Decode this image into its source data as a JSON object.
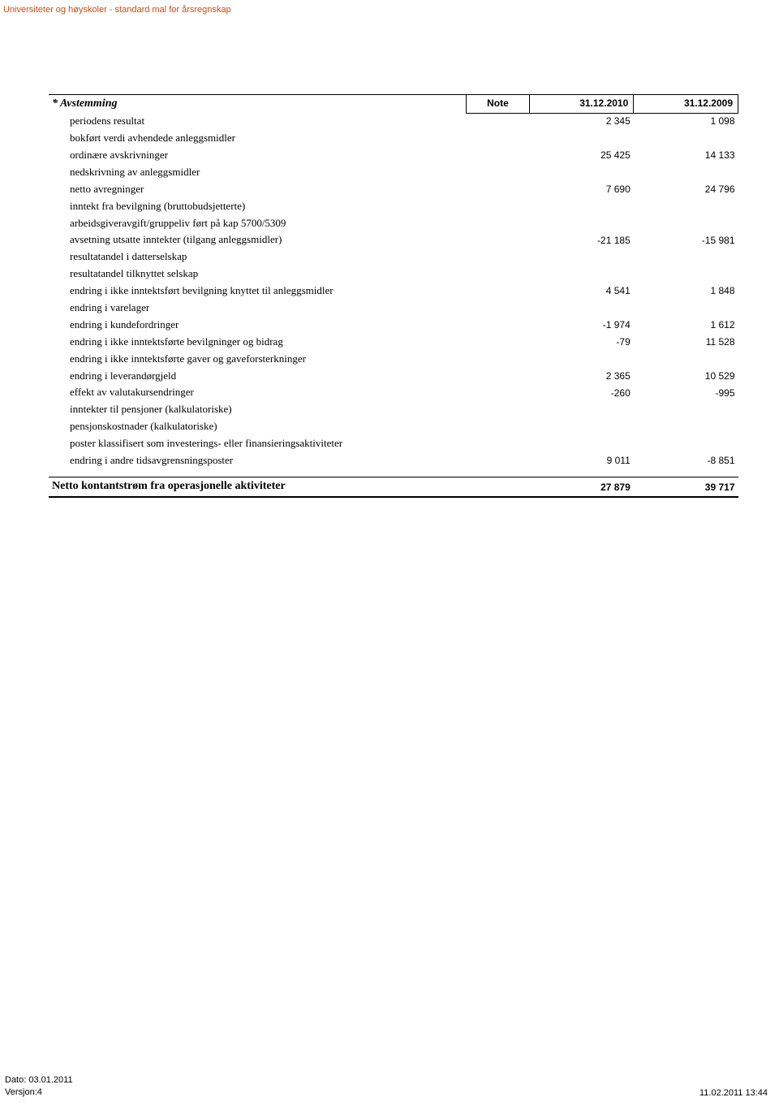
{
  "page": {
    "header": "Universiteter og høyskoler - standard mal for årsregnskap"
  },
  "table": {
    "section_title": "* Avstemming",
    "columns": {
      "note": "Note",
      "val1": "31.12.2010",
      "val2": "31.12.2009"
    },
    "rows": [
      {
        "label": "periodens resultat",
        "v1": "2 345",
        "v2": "1 098"
      },
      {
        "label": "bokført verdi avhendede anleggsmidler",
        "v1": "",
        "v2": ""
      },
      {
        "label": "ordinære avskrivninger",
        "v1": "25 425",
        "v2": "14 133"
      },
      {
        "label": "nedskrivning av anleggsmidler",
        "v1": "",
        "v2": ""
      },
      {
        "label": "netto avregninger",
        "v1": "7 690",
        "v2": "24 796"
      },
      {
        "label": "inntekt fra bevilgning (bruttobudsjetterte)",
        "v1": "",
        "v2": ""
      },
      {
        "label": "arbeidsgiveravgift/gruppeliv ført på kap 5700/5309",
        "v1": "",
        "v2": ""
      },
      {
        "label": "avsetning utsatte inntekter (tilgang anleggsmidler)",
        "v1": "-21 185",
        "v2": "-15 981"
      },
      {
        "label": "resultatandel i datterselskap",
        "v1": "",
        "v2": ""
      },
      {
        "label": "resultatandel tilknyttet selskap",
        "v1": "",
        "v2": ""
      },
      {
        "label": "endring i ikke inntektsført bevilgning knyttet til anleggsmidler",
        "v1": "4 541",
        "v2": "1 848"
      },
      {
        "label": "endring i varelager",
        "v1": "",
        "v2": ""
      },
      {
        "label": "endring i kundefordringer",
        "v1": "-1 974",
        "v2": "1 612"
      },
      {
        "label": "endring i ikke inntektsførte bevilgninger og bidrag",
        "v1": "-79",
        "v2": "11 528"
      },
      {
        "label": "endring i ikke inntektsførte gaver og gaveforsterkninger",
        "v1": "",
        "v2": ""
      },
      {
        "label": "endring i leverandørgjeld",
        "v1": "2 365",
        "v2": "10 529"
      },
      {
        "label": "effekt av valutakursendringer",
        "v1": "-260",
        "v2": "-995"
      },
      {
        "label": "inntekter til pensjoner (kalkulatoriske)",
        "v1": "",
        "v2": ""
      },
      {
        "label": "pensjonskostnader (kalkulatoriske)",
        "v1": "",
        "v2": ""
      },
      {
        "label": "poster klassifisert som investerings- eller finansieringsaktiviteter",
        "v1": "",
        "v2": ""
      },
      {
        "label": "endring i andre tidsavgrensningsposter",
        "v1": "9 011",
        "v2": "-8 851"
      }
    ],
    "total": {
      "label": "Netto kontantstrøm fra operasjonelle aktiviteter",
      "v1": "27 879",
      "v2": "39 717"
    }
  },
  "footer": {
    "date_label": "Dato: 03.01.2011",
    "version_label": "Versjon:4",
    "timestamp": "11.02.2011 13:44"
  },
  "styling": {
    "header_color": "#d24a0b",
    "text_color": "#000000",
    "background_color": "#ffffff",
    "border_color": "#000000",
    "serif_font": "Times New Roman",
    "sans_font": "Arial",
    "base_fontsize": 13,
    "header_fontsize": 11,
    "num_fontsize": 12,
    "title_fontsize": 14
  }
}
